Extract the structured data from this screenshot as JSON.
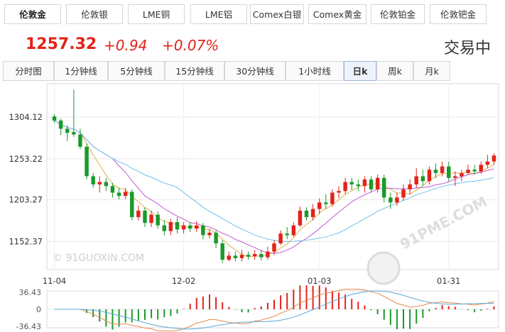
{
  "tabs": [
    {
      "label": "伦敦金",
      "active": true
    },
    {
      "label": "伦敦银",
      "active": false
    },
    {
      "label": "LME铜",
      "active": false
    },
    {
      "label": "LME铝",
      "active": false
    },
    {
      "label": "Comex白银",
      "active": false
    },
    {
      "label": "Comex黄金",
      "active": false
    },
    {
      "label": "伦敦铂金",
      "active": false
    },
    {
      "label": "伦敦钯金",
      "active": false
    }
  ],
  "quote": {
    "price": "1257.32",
    "change": "+0.94",
    "change_pct": "+0.07%",
    "status": "交易中"
  },
  "period_tabs": [
    {
      "label": "分时图",
      "active": false
    },
    {
      "label": "1分钟线",
      "active": false
    },
    {
      "label": "5分钟线",
      "active": false
    },
    {
      "label": "15分钟线",
      "active": false
    },
    {
      "label": "30分钟线",
      "active": false
    },
    {
      "label": "1小时线",
      "active": false
    },
    {
      "label": "日k",
      "active": true
    },
    {
      "label": "周k",
      "active": false
    },
    {
      "label": "月k",
      "active": false
    }
  ],
  "watermark_text": "© 91GUOXIN.COM",
  "logo_text": "91PME.COM",
  "colors": {
    "up": "#e2231a",
    "down": "#1a9a2c",
    "ma5": "#d9b44a",
    "ma10": "#c25bd0",
    "ma20": "#6fc3e8",
    "macd_dif": "#e8874a",
    "macd_dea": "#5aa9d6"
  },
  "chart_data": {
    "type": "candlestick",
    "y_ticks": [
      "1304.12",
      "1253.22",
      "1203.27",
      "1152.37"
    ],
    "y_tick_values": [
      1304.12,
      1253.22,
      1203.27,
      1152.37
    ],
    "ylim": [
      1118,
      1345
    ],
    "x_ticks": [
      {
        "label": "11-04",
        "index": 0
      },
      {
        "label": "12-02",
        "index": 20
      },
      {
        "label": "01-03",
        "index": 41
      },
      {
        "label": "01-31",
        "index": 61
      }
    ],
    "ma_lines": [
      "MA5",
      "MA10",
      "MA20"
    ],
    "candles": [
      [
        1305,
        1300,
        1308,
        1297
      ],
      [
        1300,
        1290,
        1302,
        1282
      ],
      [
        1290,
        1285,
        1294,
        1275
      ],
      [
        1286,
        1283,
        1338,
        1280
      ],
      [
        1283,
        1268,
        1290,
        1265
      ],
      [
        1268,
        1232,
        1272,
        1228
      ],
      [
        1232,
        1222,
        1236,
        1218
      ],
      [
        1222,
        1225,
        1232,
        1212
      ],
      [
        1225,
        1220,
        1230,
        1214
      ],
      [
        1220,
        1212,
        1224,
        1206
      ],
      [
        1212,
        1208,
        1218,
        1204
      ],
      [
        1208,
        1213,
        1218,
        1204
      ],
      [
        1213,
        1182,
        1216,
        1178
      ],
      [
        1182,
        1190,
        1196,
        1178
      ],
      [
        1190,
        1175,
        1194,
        1170
      ],
      [
        1175,
        1185,
        1190,
        1170
      ],
      [
        1185,
        1172,
        1189,
        1168
      ],
      [
        1172,
        1165,
        1178,
        1160
      ],
      [
        1165,
        1176,
        1180,
        1160
      ],
      [
        1176,
        1167,
        1182,
        1162
      ],
      [
        1167,
        1172,
        1176,
        1162
      ],
      [
        1172,
        1168,
        1176,
        1164
      ],
      [
        1168,
        1172,
        1177,
        1164
      ],
      [
        1172,
        1160,
        1175,
        1155
      ],
      [
        1160,
        1163,
        1168,
        1156
      ],
      [
        1163,
        1150,
        1166,
        1144
      ],
      [
        1150,
        1130,
        1154,
        1126
      ],
      [
        1130,
        1135,
        1140,
        1128
      ],
      [
        1135,
        1132,
        1140,
        1128
      ],
      [
        1132,
        1136,
        1142,
        1128
      ],
      [
        1136,
        1134,
        1140,
        1130
      ],
      [
        1134,
        1137,
        1142,
        1130
      ],
      [
        1137,
        1133,
        1142,
        1129
      ],
      [
        1133,
        1140,
        1146,
        1130
      ],
      [
        1140,
        1150,
        1154,
        1136
      ],
      [
        1150,
        1162,
        1166,
        1148
      ],
      [
        1162,
        1160,
        1170,
        1155
      ],
      [
        1160,
        1172,
        1176,
        1158
      ],
      [
        1172,
        1190,
        1195,
        1170
      ],
      [
        1190,
        1182,
        1194,
        1178
      ],
      [
        1182,
        1192,
        1198,
        1178
      ],
      [
        1192,
        1200,
        1205,
        1186
      ],
      [
        1200,
        1198,
        1210,
        1192
      ],
      [
        1198,
        1212,
        1216,
        1195
      ],
      [
        1212,
        1214,
        1220,
        1205
      ],
      [
        1214,
        1225,
        1230,
        1210
      ],
      [
        1225,
        1222,
        1230,
        1215
      ],
      [
        1222,
        1220,
        1228,
        1214
      ],
      [
        1220,
        1228,
        1232,
        1212
      ],
      [
        1228,
        1216,
        1232,
        1212
      ],
      [
        1216,
        1230,
        1234,
        1212
      ],
      [
        1230,
        1206,
        1234,
        1200
      ],
      [
        1206,
        1200,
        1212,
        1192
      ],
      [
        1200,
        1206,
        1212,
        1196
      ],
      [
        1206,
        1216,
        1222,
        1202
      ],
      [
        1216,
        1222,
        1228,
        1210
      ],
      [
        1222,
        1232,
        1242,
        1218
      ],
      [
        1232,
        1226,
        1240,
        1220
      ],
      [
        1226,
        1240,
        1244,
        1222
      ],
      [
        1240,
        1236,
        1248,
        1230
      ],
      [
        1236,
        1244,
        1250,
        1232
      ],
      [
        1244,
        1230,
        1250,
        1226
      ],
      [
        1230,
        1232,
        1238,
        1220
      ],
      [
        1232,
        1236,
        1240,
        1226
      ],
      [
        1236,
        1240,
        1246,
        1234
      ],
      [
        1240,
        1238,
        1246,
        1234
      ],
      [
        1238,
        1246,
        1250,
        1235
      ],
      [
        1246,
        1250,
        1258,
        1242
      ],
      [
        1250,
        1257.32,
        1260,
        1246
      ]
    ],
    "macd": {
      "ylim": [
        -36.43,
        36.43
      ],
      "ticks": [
        "36.43",
        "0",
        "-36.43"
      ]
    }
  }
}
